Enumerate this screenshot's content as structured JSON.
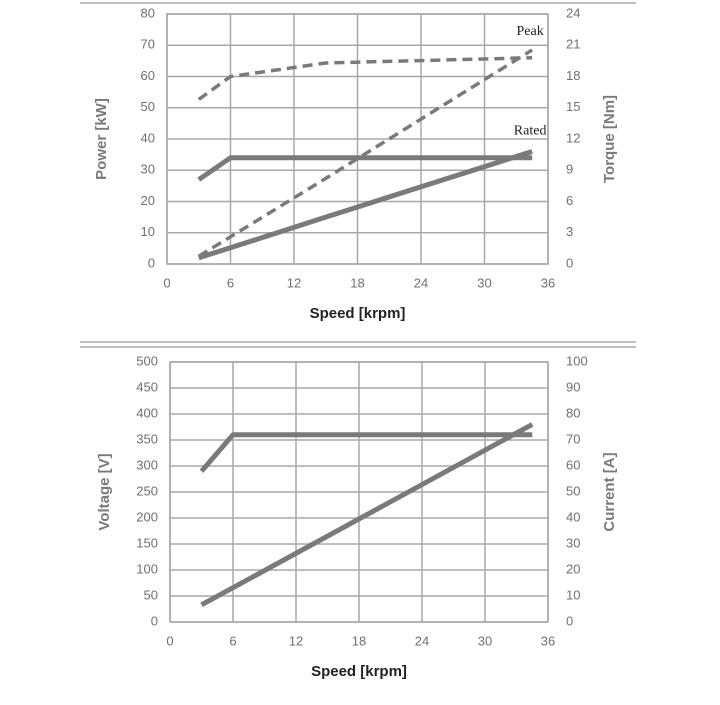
{
  "chart_data": [
    {
      "type": "line",
      "x": [
        3,
        6,
        15,
        34.5
      ],
      "xlim": [
        0,
        36
      ],
      "xticks": [
        0,
        6,
        12,
        18,
        24,
        30,
        36
      ],
      "ylim": [
        0,
        80
      ],
      "yticks": [
        0,
        10,
        20,
        30,
        40,
        50,
        60,
        70,
        80
      ],
      "y2lim": [
        0,
        24
      ],
      "y2ticks": [
        0,
        3,
        6,
        9,
        12,
        15,
        18,
        21,
        24
      ],
      "x_label": "Speed [krpm]",
      "y_label": "Power [kW]",
      "y2_label": "Torque [Nm]",
      "grid": true,
      "annotations": [
        "Peak",
        "Rated"
      ],
      "series": [
        {
          "color": "#7a7a7a",
          "dashed": true,
          "values": [
            2.5,
            8.7,
            27.4,
            68.5
          ]
        },
        {
          "color": "#7a7a7a",
          "dashed": true,
          "axis": "y2",
          "values": [
            15.8,
            18,
            19.3,
            19.8
          ]
        },
        {
          "color": "#7a7a7a",
          "dashed": false,
          "values": [
            2,
            5.2,
            15,
            36
          ]
        },
        {
          "color": "#7a7a7a",
          "dashed": false,
          "axis": "y2",
          "values": [
            8.1,
            10.2,
            10.2,
            10.2
          ]
        }
      ]
    },
    {
      "type": "line",
      "x": [
        3,
        6,
        34.5
      ],
      "xlim": [
        0,
        36
      ],
      "xticks": [
        0,
        6,
        12,
        18,
        24,
        30,
        36
      ],
      "ylim": [
        0,
        500
      ],
      "yticks": [
        0,
        50,
        100,
        150,
        200,
        250,
        300,
        350,
        400,
        450,
        500
      ],
      "y2lim": [
        0,
        100
      ],
      "y2ticks": [
        0,
        10,
        20,
        30,
        40,
        50,
        60,
        70,
        80,
        90,
        100
      ],
      "x_label": "Speed [krpm]",
      "y_label": "Voltage [V]",
      "y2_label": "Current [A]",
      "grid": true,
      "series": [
        {
          "color": "#7a7a7a",
          "dashed": false,
          "values": [
            33,
            66,
            380
          ]
        },
        {
          "color": "#7a7a7a",
          "dashed": false,
          "axis": "y2",
          "values": [
            58,
            72,
            72
          ]
        }
      ]
    }
  ]
}
